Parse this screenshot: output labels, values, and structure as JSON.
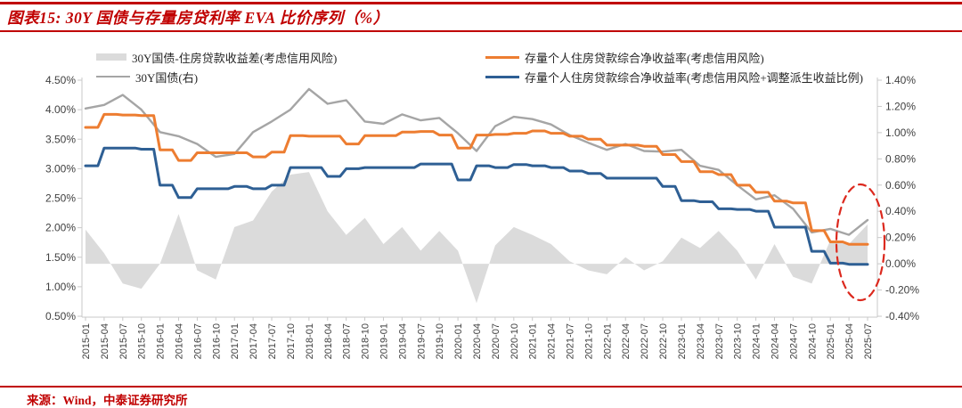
{
  "header": {
    "title": "图表15: 30Y 国债与存量房贷利率 EVA 比价序列（%）"
  },
  "footer": {
    "source": "来源：Wind，中泰证券研究所"
  },
  "colors": {
    "brand_red": "#C00000",
    "orange": "#ED7D31",
    "blue": "#2E5F94",
    "gray_line": "#A5A5A5",
    "area_fill": "#DBDBDB",
    "axis": "#C9C9C9",
    "annotation_red": "#DC291E"
  },
  "chart_data": {
    "type": "line",
    "title": "30Y 国债与存量房贷利率 EVA 比价序列（%）",
    "grid": "off",
    "legend_position": "top",
    "x_labels": [
      "2015-01",
      "2015-04",
      "2015-07",
      "2015-10",
      "2016-01",
      "2016-04",
      "2016-07",
      "2016-10",
      "2017-01",
      "2017-04",
      "2017-07",
      "2017-10",
      "2018-01",
      "2018-04",
      "2018-07",
      "2018-10",
      "2019-01",
      "2019-04",
      "2019-07",
      "2019-10",
      "2020-01",
      "2020-04",
      "2020-07",
      "2020-10",
      "2021-01",
      "2021-04",
      "2021-07",
      "2021-10",
      "2022-01",
      "2022-04",
      "2022-07",
      "2022-10",
      "2023-01",
      "2023-04",
      "2023-07",
      "2023-10",
      "2024-01",
      "2024-04",
      "2024-07",
      "2024-10",
      "2025-01",
      "2025-04",
      "2025-07"
    ],
    "left_axis": {
      "min": 0.5,
      "max": 4.5,
      "tick_labels": [
        "4.50%",
        "4.00%",
        "3.50%",
        "3.00%",
        "2.50%",
        "2.00%",
        "1.50%",
        "1.00%",
        "0.50%"
      ]
    },
    "right_axis": {
      "min": -0.4,
      "max": 1.4,
      "tick_labels": [
        "1.40%",
        "1.20%",
        "1.00%",
        "0.80%",
        "0.60%",
        "0.40%",
        "0.20%",
        "0.00%",
        "-0.20%",
        "-0.40%"
      ]
    },
    "series": [
      {
        "name": "30Y国债-住房贷款收益差(考虑信用风险)",
        "type": "area",
        "axis": "right",
        "color": "#DBDBDB",
        "baseline": 0,
        "values": [
          0.26,
          0.08,
          -0.15,
          -0.19,
          0.0,
          0.38,
          -0.05,
          -0.12,
          0.28,
          0.33,
          0.55,
          0.68,
          0.7,
          0.4,
          0.22,
          0.35,
          0.15,
          0.28,
          0.1,
          0.25,
          0.1,
          -0.3,
          0.14,
          0.28,
          0.22,
          0.15,
          0.02,
          -0.05,
          -0.08,
          0.05,
          -0.05,
          0.02,
          0.2,
          0.12,
          0.25,
          0.1,
          -0.12,
          0.15,
          -0.1,
          -0.15,
          0.18,
          0.15,
          0.3
        ]
      },
      {
        "name": "30Y国债(右)",
        "type": "line",
        "axis": "left",
        "step": false,
        "color": "#A5A5A5",
        "width": 2.4,
        "values": [
          4.02,
          4.08,
          4.25,
          4.0,
          3.62,
          3.55,
          3.42,
          3.2,
          3.25,
          3.62,
          3.8,
          4.0,
          4.35,
          4.1,
          4.16,
          3.8,
          3.76,
          3.92,
          3.82,
          3.86,
          3.6,
          3.3,
          3.72,
          3.88,
          3.84,
          3.75,
          3.57,
          3.44,
          3.32,
          3.42,
          3.3,
          3.29,
          3.32,
          3.05,
          2.98,
          2.72,
          2.48,
          2.55,
          2.32,
          1.92,
          1.98,
          1.88,
          2.13
        ]
      },
      {
        "name": "存量个人住房贷款综合净收益率(考虑信用风险)",
        "type": "line",
        "axis": "left",
        "step": true,
        "color": "#ED7D31",
        "width": 3,
        "values": [
          3.7,
          3.92,
          3.91,
          3.9,
          3.32,
          3.14,
          3.27,
          3.27,
          3.27,
          3.2,
          3.28,
          3.56,
          3.55,
          3.55,
          3.42,
          3.56,
          3.56,
          3.62,
          3.63,
          3.57,
          3.35,
          3.57,
          3.58,
          3.6,
          3.64,
          3.6,
          3.55,
          3.5,
          3.4,
          3.4,
          3.38,
          3.24,
          3.12,
          2.95,
          2.9,
          2.72,
          2.6,
          2.45,
          2.42,
          1.95,
          1.76,
          1.72,
          1.72
        ]
      },
      {
        "name": "存量个人住房贷款综合净收益率(考虑信用风险+调整派生收益比例)",
        "type": "line",
        "axis": "left",
        "step": true,
        "color": "#2E5F94",
        "width": 3,
        "values": [
          3.05,
          3.35,
          3.35,
          3.33,
          2.72,
          2.51,
          2.66,
          2.66,
          2.7,
          2.66,
          2.72,
          3.02,
          3.02,
          2.87,
          3.0,
          3.02,
          3.02,
          3.02,
          3.08,
          3.08,
          2.81,
          3.05,
          3.02,
          3.07,
          3.05,
          3.02,
          2.96,
          2.92,
          2.84,
          2.84,
          2.84,
          2.7,
          2.46,
          2.44,
          2.32,
          2.31,
          2.28,
          2.01,
          2.01,
          1.6,
          1.4,
          1.38,
          1.38
        ]
      }
    ],
    "annotation_ellipse": {
      "cx": 966,
      "cy": 272,
      "rx": 27,
      "ry": 65,
      "color": "#DC291E"
    }
  }
}
